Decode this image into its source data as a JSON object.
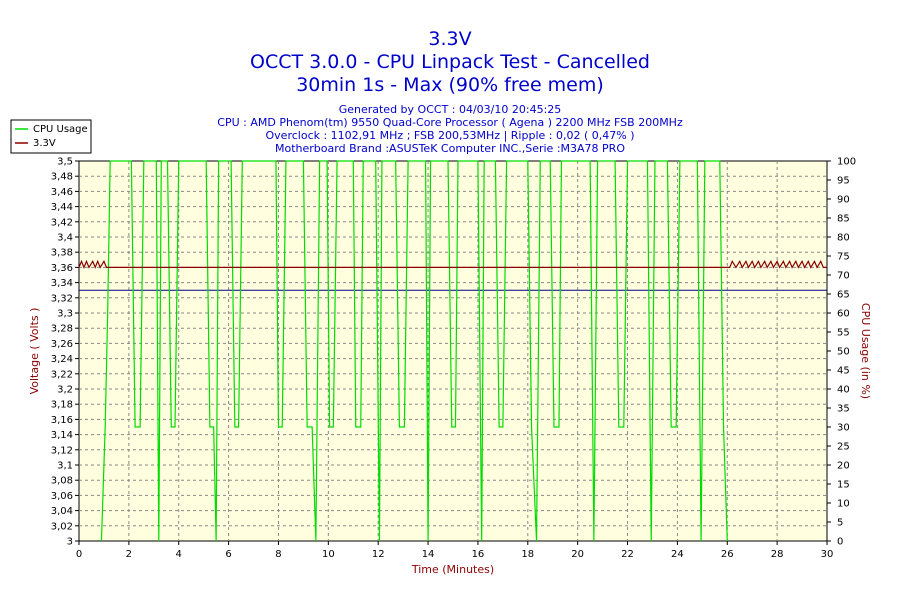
{
  "chart_data": {
    "type": "line",
    "title": "3.3V",
    "subtitle_lines": [
      "OCCT 3.0.0 - CPU Linpack Test - Cancelled",
      "30min 1s - Max (90% free mem)"
    ],
    "info_lines": [
      "Generated by OCCT : 04/03/10 20:45:25",
      "CPU : AMD Phenom(tm) 9550 Quad-Core Processor ( Agena ) 2200 MHz FSB 200MHz",
      "Overclock : 1102,91 MHz ; FSB 200,53MHz | Ripple : 0,02 ( 0,47% )",
      "Motherboard Brand :ASUSTeK Computer INC.,Serie :M3A78 PRO"
    ],
    "xlabel": "Time (Minutes)",
    "ylabel": "Voltage ( Volts )",
    "y2label": "CPU Usage (in %)",
    "xlim": [
      0,
      30
    ],
    "ylim": [
      3,
      3.5
    ],
    "y2lim": [
      0,
      100
    ],
    "x_ticks": [
      "0",
      "2",
      "4",
      "6",
      "8",
      "10",
      "12",
      "14",
      "16",
      "18",
      "20",
      "22",
      "24",
      "26",
      "28",
      "30"
    ],
    "y_ticks": [
      "3",
      "3,02",
      "3,04",
      "3,06",
      "3,08",
      "3,1",
      "3,12",
      "3,14",
      "3,16",
      "3,18",
      "3,2",
      "3,22",
      "3,24",
      "3,26",
      "3,28",
      "3,3",
      "3,32",
      "3,34",
      "3,36",
      "3,38",
      "3,4",
      "3,42",
      "3,44",
      "3,46",
      "3,48",
      "3,5"
    ],
    "y2_ticks": [
      "0",
      "5",
      "10",
      "15",
      "20",
      "25",
      "30",
      "35",
      "40",
      "45",
      "50",
      "55",
      "60",
      "65",
      "70",
      "75",
      "80",
      "85",
      "90",
      "95",
      "100"
    ],
    "reference_line": {
      "value": 3.33,
      "color": "#000080"
    },
    "grid": true,
    "legend_placement": "top-left",
    "series": [
      {
        "name": "CPU Usage",
        "axis": "right",
        "color": "#00dd00",
        "points": [
          [
            0.9,
            0
          ],
          [
            1.05,
            30
          ],
          [
            1.15,
            60
          ],
          [
            1.25,
            100
          ],
          [
            2.1,
            100
          ],
          [
            2.25,
            30
          ],
          [
            2.45,
            30
          ],
          [
            2.6,
            100
          ],
          [
            3.1,
            100
          ],
          [
            3.2,
            0
          ],
          [
            3.3,
            100
          ],
          [
            3.55,
            100
          ],
          [
            3.7,
            30
          ],
          [
            3.85,
            30
          ],
          [
            4.0,
            100
          ],
          [
            5.1,
            100
          ],
          [
            5.25,
            30
          ],
          [
            5.4,
            30
          ],
          [
            5.5,
            0
          ],
          [
            5.6,
            100
          ],
          [
            6.1,
            100
          ],
          [
            6.25,
            30
          ],
          [
            6.4,
            30
          ],
          [
            6.55,
            100
          ],
          [
            7.9,
            100
          ],
          [
            8.0,
            30
          ],
          [
            8.15,
            30
          ],
          [
            8.3,
            100
          ],
          [
            9.0,
            100
          ],
          [
            9.15,
            30
          ],
          [
            9.35,
            30
          ],
          [
            9.5,
            0
          ],
          [
            9.65,
            100
          ],
          [
            9.95,
            100
          ],
          [
            10.05,
            30
          ],
          [
            10.2,
            30
          ],
          [
            10.35,
            100
          ],
          [
            11.0,
            100
          ],
          [
            11.1,
            30
          ],
          [
            11.3,
            30
          ],
          [
            11.4,
            100
          ],
          [
            11.9,
            100
          ],
          [
            12.05,
            0
          ],
          [
            12.15,
            100
          ],
          [
            12.7,
            100
          ],
          [
            12.85,
            30
          ],
          [
            13.05,
            30
          ],
          [
            13.2,
            100
          ],
          [
            13.9,
            100
          ],
          [
            14.0,
            0
          ],
          [
            14.1,
            100
          ],
          [
            14.8,
            100
          ],
          [
            14.95,
            30
          ],
          [
            15.1,
            30
          ],
          [
            15.2,
            100
          ],
          [
            16.0,
            100
          ],
          [
            16.15,
            0
          ],
          [
            16.25,
            100
          ],
          [
            16.7,
            100
          ],
          [
            16.85,
            30
          ],
          [
            17.0,
            30
          ],
          [
            17.15,
            100
          ],
          [
            18.0,
            100
          ],
          [
            18.15,
            30
          ],
          [
            18.35,
            0
          ],
          [
            18.5,
            100
          ],
          [
            18.9,
            100
          ],
          [
            19.05,
            30
          ],
          [
            19.25,
            30
          ],
          [
            19.35,
            100
          ],
          [
            20.5,
            100
          ],
          [
            20.65,
            0
          ],
          [
            20.8,
            100
          ],
          [
            21.5,
            100
          ],
          [
            21.65,
            30
          ],
          [
            21.85,
            30
          ],
          [
            22.0,
            100
          ],
          [
            22.8,
            100
          ],
          [
            22.95,
            0
          ],
          [
            23.1,
            100
          ],
          [
            23.6,
            100
          ],
          [
            23.75,
            30
          ],
          [
            23.95,
            30
          ],
          [
            24.1,
            100
          ],
          [
            24.8,
            100
          ],
          [
            24.95,
            0
          ],
          [
            25.1,
            100
          ],
          [
            25.5,
            100
          ],
          [
            25.7,
            100
          ],
          [
            25.85,
            30
          ],
          [
            26.0,
            0
          ]
        ]
      },
      {
        "name": "3.3V",
        "axis": "left",
        "color": "#8b0000",
        "points": [
          [
            0,
            3.36
          ],
          [
            0.1,
            3.368
          ],
          [
            0.2,
            3.36
          ],
          [
            0.3,
            3.368
          ],
          [
            0.4,
            3.36
          ],
          [
            0.55,
            3.368
          ],
          [
            0.65,
            3.36
          ],
          [
            0.75,
            3.368
          ],
          [
            0.85,
            3.36
          ],
          [
            1.0,
            3.368
          ],
          [
            1.1,
            3.36
          ],
          [
            26.1,
            3.36
          ],
          [
            26.2,
            3.368
          ],
          [
            26.35,
            3.36
          ],
          [
            26.5,
            3.368
          ],
          [
            26.6,
            3.36
          ],
          [
            26.75,
            3.368
          ],
          [
            26.85,
            3.36
          ],
          [
            27.0,
            3.368
          ],
          [
            27.1,
            3.36
          ],
          [
            27.25,
            3.368
          ],
          [
            27.35,
            3.36
          ],
          [
            27.5,
            3.368
          ],
          [
            27.6,
            3.36
          ],
          [
            27.75,
            3.368
          ],
          [
            27.85,
            3.36
          ],
          [
            28.0,
            3.368
          ],
          [
            28.1,
            3.36
          ],
          [
            28.25,
            3.368
          ],
          [
            28.35,
            3.36
          ],
          [
            28.5,
            3.368
          ],
          [
            28.6,
            3.36
          ],
          [
            28.75,
            3.368
          ],
          [
            28.85,
            3.36
          ],
          [
            29.0,
            3.368
          ],
          [
            29.1,
            3.36
          ],
          [
            29.25,
            3.368
          ],
          [
            29.35,
            3.36
          ],
          [
            29.5,
            3.368
          ],
          [
            29.6,
            3.36
          ],
          [
            29.75,
            3.368
          ],
          [
            29.85,
            3.36
          ],
          [
            30,
            3.36
          ]
        ]
      }
    ]
  }
}
